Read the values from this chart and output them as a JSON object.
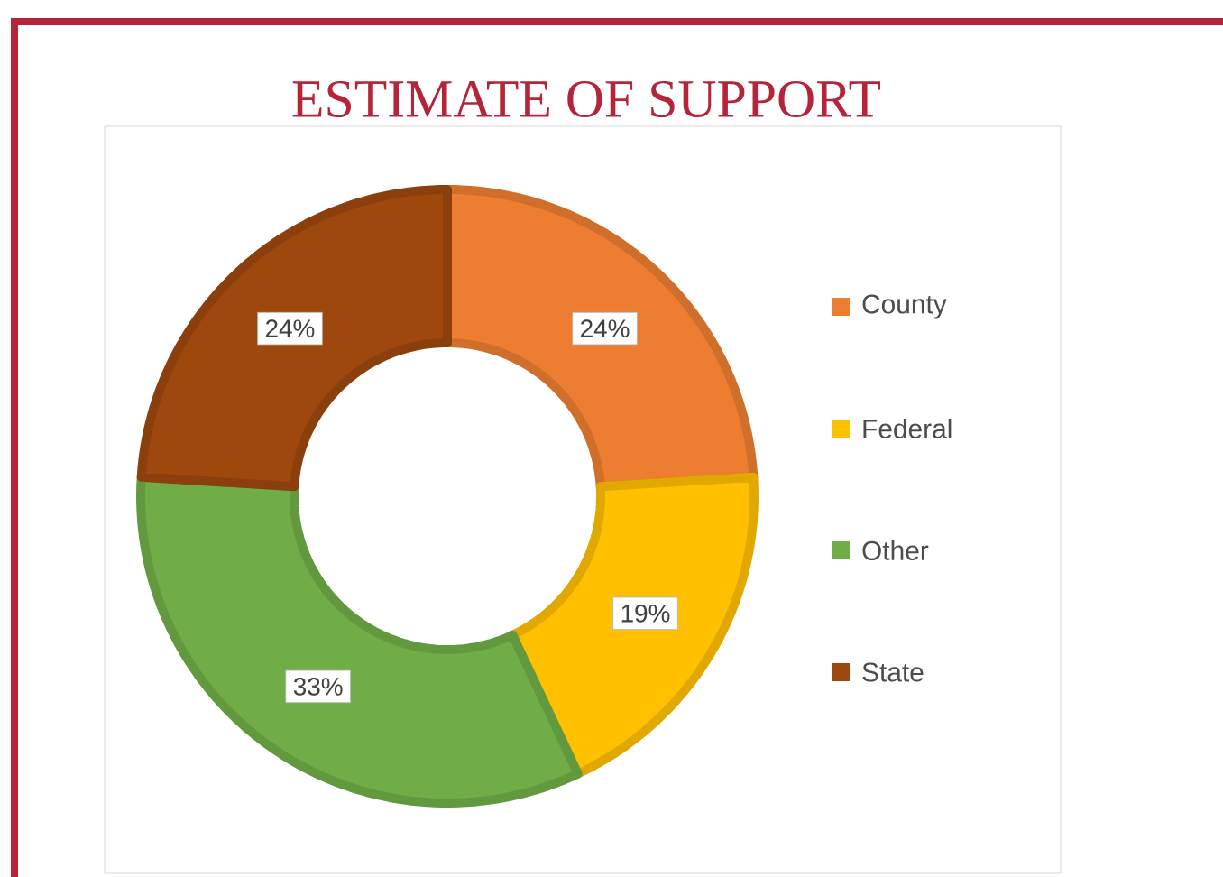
{
  "chart_data": {
    "type": "donut",
    "title": "ESTIMATE OF SUPPORT",
    "categories": [
      "County",
      "Federal",
      "Other",
      "State"
    ],
    "values": [
      24,
      19,
      33,
      24
    ],
    "value_labels": [
      "24%",
      "19%",
      "33%",
      "24%"
    ],
    "colors": [
      "#ed7d31",
      "#ffc000",
      "#70ad47",
      "#9e480e"
    ],
    "legend": "right"
  }
}
